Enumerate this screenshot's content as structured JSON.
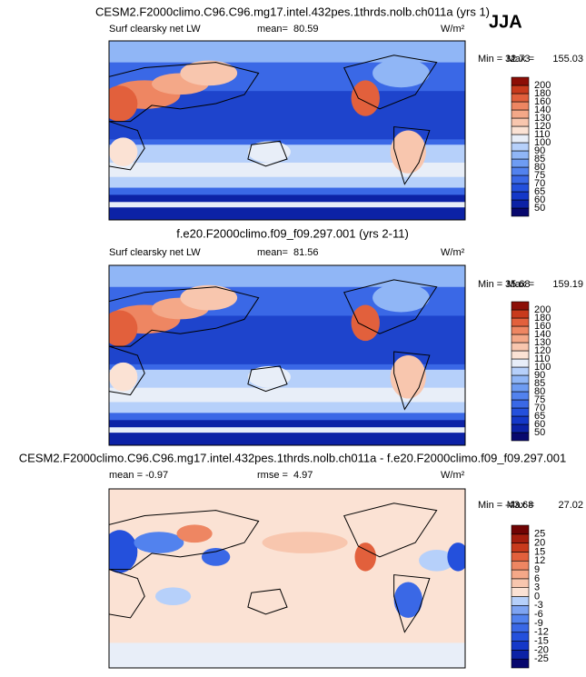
{
  "season": "JJA",
  "panels": [
    {
      "title": "CESM2.F2000climo.C96.C96.mg17.intel.432pes.1thrds.nolb.ch011a (yrs 1)",
      "left_label": "Surf clearsky net LW",
      "center_label": "mean=",
      "center_value": 80.59,
      "units": "W/m²",
      "min_label": "Min =",
      "min": 32.73,
      "max_label": "Max =",
      "max": 155.03,
      "colorbar": {
        "levels": [
          50,
          60,
          65,
          70,
          75,
          80,
          85,
          90,
          100,
          110,
          120,
          130,
          140,
          160,
          180,
          200
        ],
        "colors": [
          "#08086e",
          "#0c22a6",
          "#1438c8",
          "#2450dc",
          "#3a68e6",
          "#5282ee",
          "#6e9cf2",
          "#90b6f6",
          "#b6d0fa",
          "#e8eef8",
          "#fbe2d4",
          "#f8c6ae",
          "#f4a888",
          "#ee8662",
          "#e2603c",
          "#c83a1c",
          "#8c0e06"
        ]
      }
    },
    {
      "title": "f.e20.F2000climo.f09_f09.297.001 (yrs 2-11)",
      "left_label": "Surf clearsky net LW",
      "center_label": "mean=",
      "center_value": 81.56,
      "units": "W/m²",
      "min_label": "Min =",
      "min": 35.68,
      "max_label": "Max =",
      "max": 159.19,
      "colorbar": {
        "levels": [
          50,
          60,
          65,
          70,
          75,
          80,
          85,
          90,
          100,
          110,
          120,
          130,
          140,
          160,
          180,
          200
        ],
        "colors": [
          "#08086e",
          "#0c22a6",
          "#1438c8",
          "#2450dc",
          "#3a68e6",
          "#5282ee",
          "#6e9cf2",
          "#90b6f6",
          "#b6d0fa",
          "#e8eef8",
          "#fbe2d4",
          "#f8c6ae",
          "#f4a888",
          "#ee8662",
          "#e2603c",
          "#c83a1c",
          "#8c0e06"
        ]
      }
    },
    {
      "title": "CESM2.F2000climo.C96.C96.mg17.intel.432pes.1thrds.nolb.ch011a - f.e20.F2000climo.f09_f09.297.001",
      "left_label": "mean =",
      "left_value": -0.97,
      "center_label": "rmse =",
      "center_value": 4.97,
      "units": "W/m²",
      "min_label": "Min =",
      "min": -43.68,
      "max_label": "Max =",
      "max": 27.02,
      "colorbar": {
        "levels": [
          -25,
          -20,
          -15,
          -12,
          -9,
          -6,
          -3,
          0,
          3,
          6,
          9,
          12,
          15,
          20,
          25
        ],
        "colors": [
          "#08086e",
          "#0c22a6",
          "#1438c8",
          "#2450dc",
          "#3a68e6",
          "#5282ee",
          "#7ea4f2",
          "#b6d0fa",
          "#fbe2d4",
          "#f8c6ae",
          "#f4a888",
          "#ee8662",
          "#e2603c",
          "#c83a1c",
          "#a41e0e",
          "#700404"
        ]
      }
    }
  ]
}
